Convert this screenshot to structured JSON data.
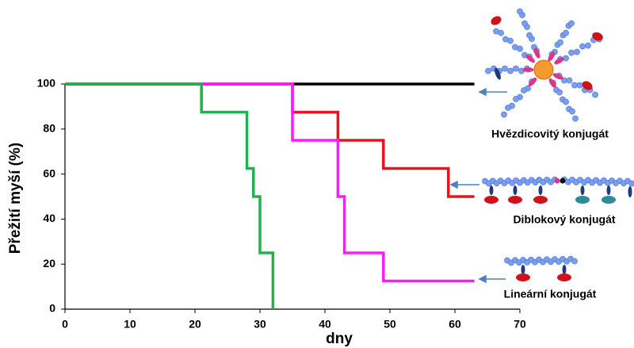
{
  "chart_data": {
    "type": "step",
    "xlabel": "dny",
    "ylabel": "Přežití myší (%)",
    "xlim": [
      0,
      70
    ],
    "xticks": [
      0,
      10,
      20,
      30,
      40,
      50,
      60,
      70
    ],
    "ylim": [
      0,
      100
    ],
    "yticks": [
      0,
      20,
      40,
      60,
      80,
      100
    ],
    "grid": false,
    "series": [
      {
        "color": "#000000",
        "x": [
          0,
          63
        ],
        "values": [
          100,
          100
        ]
      },
      {
        "color": "#e8141b",
        "x": [
          0,
          35,
          42,
          49,
          59,
          63
        ],
        "values": [
          100,
          87.5,
          75,
          62.5,
          50,
          50
        ]
      },
      {
        "color": "#ff1aff",
        "x": [
          0,
          35,
          42,
          43,
          49,
          63
        ],
        "values": [
          100,
          75,
          50,
          25,
          12.5,
          12.5
        ]
      },
      {
        "color": "#22b14c",
        "x": [
          0,
          21,
          28,
          29,
          30,
          32
        ],
        "values": [
          100,
          87.5,
          62.5,
          50,
          25,
          0
        ]
      }
    ],
    "annotations": [
      "Hvězdicovitý konjugát",
      "Diblokový konjugát",
      "Lineární konjugát"
    ]
  }
}
